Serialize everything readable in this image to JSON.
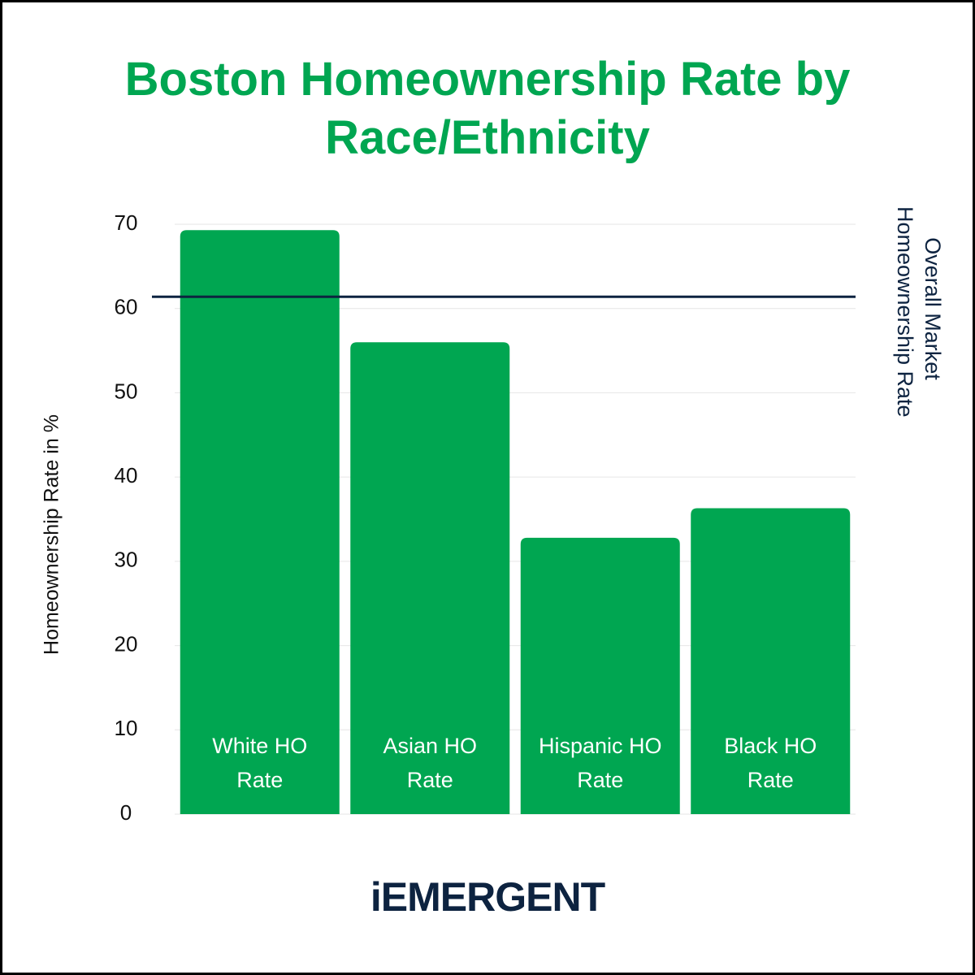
{
  "chart_data": {
    "type": "bar",
    "title": "Boston Homeownership Rate by Race/Ethnicity",
    "y_label": "Homeownership Rate in %",
    "categories": [
      "White HO Rate",
      "Asian HO Rate",
      "Hispanic HO Rate",
      "Black HO Rate"
    ],
    "values": [
      69.3,
      56.0,
      32.8,
      36.3
    ],
    "color": "#00a651",
    "ylim": [
      0,
      70
    ],
    "yticks": [
      0,
      10,
      20,
      30,
      40,
      50,
      60,
      70
    ],
    "grid": true,
    "reference_line": {
      "label": "Overall Market Homeownership Rate",
      "value": 61.4,
      "color": "#0d2340"
    }
  },
  "logo": "iEMERGENT"
}
